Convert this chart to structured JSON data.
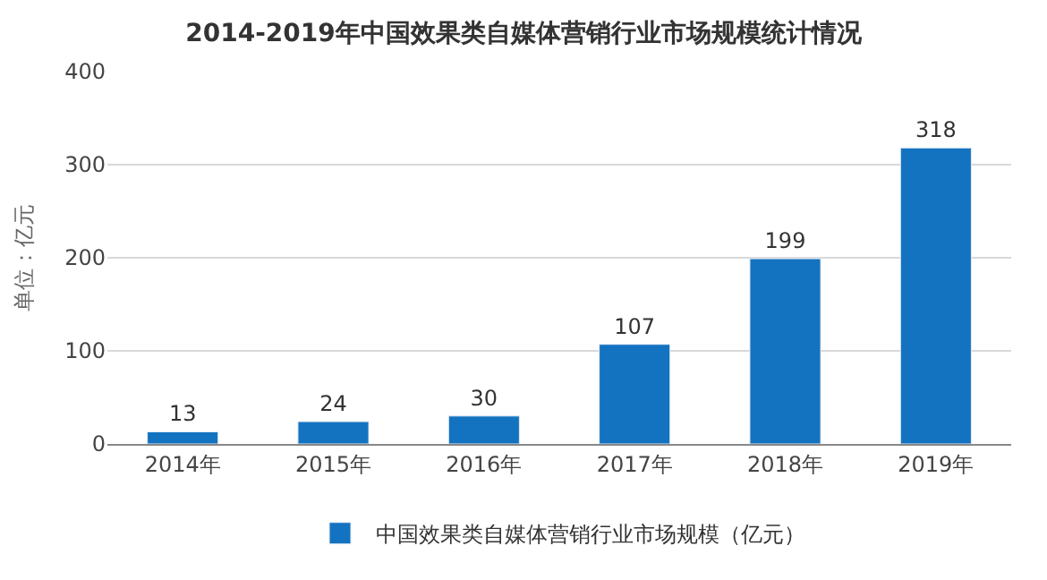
{
  "chart_data": {
    "type": "bar",
    "title": "2014-2019年中国效果类自媒体营销行业市场规模统计情况",
    "ylabel": "单位：亿元",
    "categories": [
      "2014年",
      "2015年",
      "2016年",
      "2017年",
      "2018年",
      "2019年"
    ],
    "series": [
      {
        "name": "中国效果类自媒体营销行业市场规模（亿元）",
        "color": "#1473c0",
        "values": [
          13,
          24,
          30,
          107,
          199,
          318
        ]
      }
    ],
    "ylim": [
      0,
      400
    ],
    "yticks": [
      0,
      100,
      200,
      300,
      400
    ],
    "grid": "y",
    "legend": "bottom",
    "data_labels": true
  }
}
